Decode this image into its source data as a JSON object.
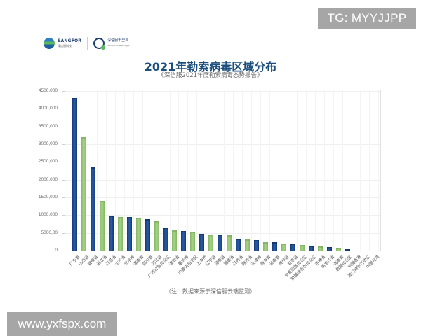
{
  "watermarks": {
    "top": "TG: MYYJJPP",
    "bottom": "www.yxfspx.com"
  },
  "logos": {
    "sangfor": "SANGFOR",
    "sangfor_cn": "深信服科技",
    "sharpinsight_cn": "深信服千里目",
    "sharpinsight_en": "Sangfor SharpInsight"
  },
  "title": "2021年勒索病毒区域分布",
  "subtitle": "《深信服2021年度勒索病毒态势报告》",
  "footnote": "（注：数据来源于深信服云端监测）",
  "colors": {
    "series_blue": "#1f4f96",
    "series_green": "#9bc97a",
    "title": "#1d4f7e"
  },
  "y_tick_labels": [
    "4500,000",
    "4000,000",
    "3500,000",
    "3000,000",
    "2500,000",
    "2000,000",
    "1500,000",
    "1000,000",
    "5000,00",
    "0"
  ],
  "chart_data": {
    "type": "bar",
    "title": "2021年勒索病毒区域分布",
    "subtitle": "《深信服2021年度勒索病毒态势报告》",
    "xlabel": "",
    "ylabel": "",
    "ylim": [
      0,
      4500000
    ],
    "yticks": [
      0,
      500000,
      1000000,
      1500000,
      2000000,
      2500000,
      3000000,
      3500000,
      4000000,
      4500000
    ],
    "grid": true,
    "legend": null,
    "bar_colors": "alternating blue (#1f4f96) / green (#9bc97a)",
    "categories": [
      "广东省",
      "山西省",
      "安徽省",
      "浙江省",
      "江苏省",
      "山东省",
      "北京市",
      "湖南省",
      "四川省",
      "河北省",
      "广西壮族自治区",
      "湖北省",
      "重庆市",
      "内蒙古自治区",
      "上海市",
      "辽宁省",
      "河南省",
      "福建省",
      "江西省",
      "陕西省",
      "天津市",
      "青海省",
      "云南省",
      "贵州省",
      "甘肃省",
      "宁夏回族自治区",
      "新疆维吾尔自治区",
      "吉林省",
      "黑龙江省",
      "海南省",
      "西藏自治区",
      "中国香港",
      "澳门特别行政区",
      "中国台湾"
    ],
    "values": [
      4300000,
      3200000,
      2350000,
      1400000,
      990000,
      950000,
      940000,
      930000,
      880000,
      820000,
      650000,
      580000,
      560000,
      540000,
      480000,
      460000,
      450000,
      430000,
      340000,
      320000,
      300000,
      240000,
      230000,
      200000,
      190000,
      160000,
      140000,
      110000,
      90000,
      70000,
      40000,
      0,
      0,
      0
    ],
    "note": "（注：数据来源于深信服云端监测）"
  }
}
